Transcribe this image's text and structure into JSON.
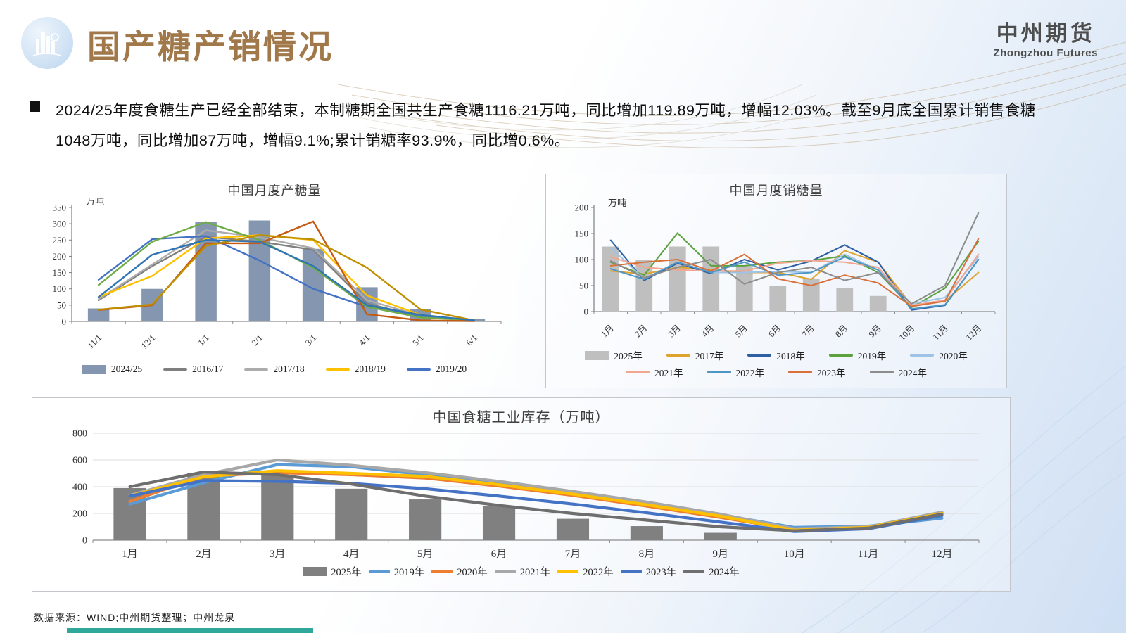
{
  "header": {
    "title": "国产糖产销情况",
    "logo_icon": "city-skyline-icon",
    "brand": {
      "name_cn": "中州期货",
      "name_en": "Zhongzhou Futures"
    }
  },
  "summary": {
    "lines": [
      "2024/25年度食糖生产已经全部结束，本制糖期全国共生产食糖1116.21万吨，同比增加119.89万吨，增幅12.03%。截至9月底全国累计销售食糖1048万吨，同比增加87万吨，增幅9.1%;累计销糖率93.9%，同比增0.6%。"
    ]
  },
  "footer": {
    "source": "数据来源：WIND;中州期货整理；中州龙泉"
  },
  "chart_data": [
    {
      "type": "bar+line",
      "title": "中国月度产糖量",
      "unit": "万吨",
      "categories": [
        "11/1",
        "12/1",
        "1/1",
        "2/1",
        "3/1",
        "4/1",
        "5/1",
        "6/1"
      ],
      "ylim": [
        0,
        350
      ],
      "yticks": [
        0,
        50,
        100,
        150,
        200,
        250,
        300,
        350
      ],
      "grid": false,
      "rotate_labels": true,
      "bar_series": {
        "name": "2024/25",
        "color": "#8496B0",
        "values": [
          40,
          100,
          305,
          310,
          223,
          105,
          37,
          7
        ]
      },
      "line_series": [
        {
          "name": "2016/17",
          "color": "#7F7F7F",
          "in_legend": true,
          "values": [
            65,
            170,
            260,
            245,
            220,
            55,
            15,
            3
          ]
        },
        {
          "name": "2017/18",
          "color": "#ACACAC",
          "in_legend": true,
          "values": [
            68,
            175,
            280,
            258,
            225,
            65,
            18,
            3
          ]
        },
        {
          "name": "2018/19",
          "color": "#FFC000",
          "in_legend": true,
          "values": [
            75,
            140,
            255,
            265,
            250,
            80,
            20,
            3
          ]
        },
        {
          "name": "2019/20",
          "color": "#4472C4",
          "in_legend": true,
          "values": [
            128,
            253,
            262,
            187,
            100,
            45,
            15,
            2
          ]
        },
        {
          "name": "",
          "color": "#70AD47",
          "in_legend": false,
          "values": [
            112,
            245,
            305,
            250,
            165,
            45,
            12,
            3
          ]
        },
        {
          "name": "",
          "color": "#C55A11",
          "in_legend": false,
          "values": [
            35,
            50,
            240,
            240,
            307,
            22,
            3,
            1
          ]
        },
        {
          "name": "",
          "color": "#BF8F00",
          "in_legend": false,
          "values": [
            36,
            52,
            232,
            265,
            252,
            165,
            37,
            3
          ]
        },
        {
          "name": "",
          "color": "#2E75B6",
          "in_legend": false,
          "values": [
            75,
            205,
            250,
            245,
            170,
            50,
            20,
            3
          ]
        }
      ]
    },
    {
      "type": "bar+line",
      "title": "中国月度销糖量",
      "unit": "万吨",
      "categories": [
        "1月",
        "2月",
        "3月",
        "4月",
        "5月",
        "6月",
        "7月",
        "8月",
        "9月",
        "10月",
        "11月",
        "12月"
      ],
      "ylim": [
        0,
        200
      ],
      "yticks": [
        0,
        50,
        100,
        150,
        200
      ],
      "grid": false,
      "rotate_labels": true,
      "bar_series": {
        "name": "2025年",
        "color": "#BFBFBF",
        "values": [
          125,
          100,
          125,
          125,
          88,
          50,
          63,
          45,
          30,
          null,
          null,
          null
        ]
      },
      "line_series": [
        {
          "name": "2017年",
          "color": "#DFA32E",
          "in_legend": true,
          "values": [
            78,
            72,
            85,
            80,
            75,
            75,
            62,
            117,
            95,
            12,
            20,
            75
          ]
        },
        {
          "name": "2018年",
          "color": "#2E5FA3",
          "in_legend": true,
          "values": [
            137,
            60,
            93,
            73,
            100,
            80,
            97,
            128,
            95,
            3,
            12,
            100
          ]
        },
        {
          "name": "2019年",
          "color": "#5BA23F",
          "in_legend": true,
          "values": [
            95,
            70,
            151,
            88,
            88,
            95,
            98,
            107,
            75,
            8,
            45,
            135
          ]
        },
        {
          "name": "2020年",
          "color": "#9DC3E6",
          "in_legend": true,
          "values": [
            123,
            63,
            95,
            75,
            75,
            77,
            75,
            110,
            80,
            15,
            27,
            105
          ]
        },
        {
          "name": "2021年",
          "color": "#F2A58F",
          "in_legend": true,
          "values": [
            105,
            85,
            80,
            78,
            78,
            93,
            98,
            95,
            85,
            12,
            22,
            110
          ]
        },
        {
          "name": "2022年",
          "color": "#4E96C6",
          "in_legend": true,
          "values": [
            82,
            62,
            95,
            75,
            95,
            70,
            75,
            105,
            80,
            5,
            13,
            100
          ]
        },
        {
          "name": "2023年",
          "color": "#D9703A",
          "in_legend": true,
          "values": [
            88,
            95,
            100,
            78,
            110,
            63,
            50,
            70,
            55,
            10,
            20,
            140
          ]
        },
        {
          "name": "2024年",
          "color": "#8C8C8C",
          "in_legend": true,
          "values": [
            97,
            65,
            85,
            100,
            53,
            75,
            85,
            60,
            75,
            15,
            50,
            190
          ]
        }
      ]
    },
    {
      "type": "bar+line",
      "title": "中国食糖工业库存（万吨）",
      "unit": "",
      "categories": [
        "1月",
        "2月",
        "3月",
        "4月",
        "5月",
        "6月",
        "7月",
        "8月",
        "9月",
        "10月",
        "11月",
        "12月"
      ],
      "ylim": [
        0,
        800
      ],
      "yticks": [
        0,
        200,
        400,
        600,
        800
      ],
      "grid": true,
      "rotate_labels": false,
      "bar_series": {
        "name": "2025年",
        "color": "#808080",
        "values": [
          390,
          500,
          490,
          385,
          305,
          253,
          160,
          105,
          55,
          null,
          null,
          null
        ]
      },
      "line_series": [
        {
          "name": "2019年",
          "color": "#5B9BD5",
          "in_legend": true,
          "values": [
            270,
            430,
            565,
            550,
            490,
            420,
            345,
            270,
            190,
            95,
            105,
            165
          ]
        },
        {
          "name": "2020年",
          "color": "#ED7D31",
          "in_legend": true,
          "values": [
            290,
            480,
            505,
            490,
            465,
            405,
            335,
            255,
            170,
            80,
            95,
            205
          ]
        },
        {
          "name": "2021年",
          "color": "#A8A8A8",
          "in_legend": true,
          "values": [
            335,
            490,
            600,
            560,
            505,
            440,
            365,
            285,
            195,
            85,
            100,
            210
          ]
        },
        {
          "name": "2022年",
          "color": "#FFC000",
          "in_legend": true,
          "values": [
            330,
            475,
            520,
            500,
            478,
            415,
            345,
            265,
            180,
            75,
            95,
            200
          ]
        },
        {
          "name": "2023年",
          "color": "#4472C4",
          "in_legend": true,
          "values": [
            330,
            445,
            440,
            425,
            385,
            330,
            270,
            205,
            135,
            65,
            85,
            185
          ]
        },
        {
          "name": "2024年",
          "color": "#6E6E6E",
          "in_legend": true,
          "values": [
            400,
            510,
            490,
            420,
            330,
            260,
            200,
            150,
            100,
            70,
            90,
            195
          ]
        }
      ]
    }
  ]
}
